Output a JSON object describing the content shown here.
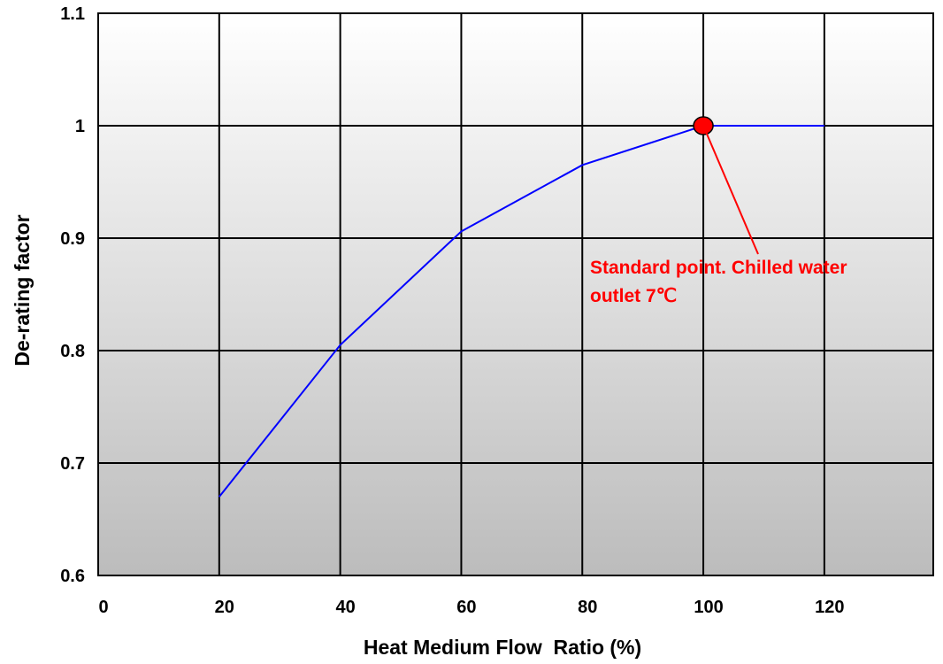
{
  "chart_data": {
    "type": "line",
    "xlabel": "Heat Medium Flow  Ratio (%)",
    "ylabel": "De-rating factor",
    "xlim": [
      0,
      138
    ],
    "ylim": [
      0.6,
      1.1
    ],
    "x_ticks": [
      "0",
      "20",
      "40",
      "60",
      "80",
      "100",
      "120"
    ],
    "y_ticks": [
      "0.6",
      "0.7",
      "0.8",
      "0.9",
      "1",
      "1.1"
    ],
    "grid": true,
    "background": "gradient white-to-gray (top to bottom)",
    "series": [
      {
        "color": "#0000ff",
        "x": [
          20,
          40,
          60,
          80,
          100,
          120
        ],
        "y": [
          0.67,
          0.805,
          0.906,
          0.965,
          1.0,
          1.0
        ]
      }
    ],
    "marker": {
      "x": 100,
      "y": 1.0,
      "color": "#ff0000"
    },
    "annotation": {
      "lines": [
        "Standard point. Chilled water",
        "outlet 7℃"
      ],
      "color": "#ff0000"
    }
  }
}
